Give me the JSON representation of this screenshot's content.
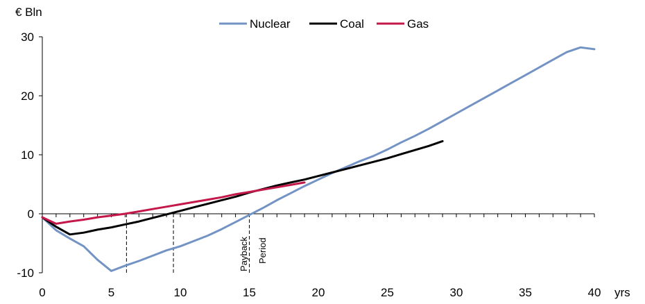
{
  "chart_data": {
    "type": "line",
    "title": "",
    "ylabel": "€ Bln",
    "xlabel": "yrs",
    "xlim": [
      0,
      40
    ],
    "ylim": [
      -10,
      30
    ],
    "x_ticks": [
      0,
      5,
      10,
      15,
      20,
      25,
      30,
      35,
      40
    ],
    "y_ticks": [
      -10,
      0,
      10,
      20,
      30
    ],
    "grid": false,
    "legend": "top-center",
    "series": [
      {
        "name": "Nuclear",
        "color": "#7393c4",
        "points": [
          [
            0,
            -0.6
          ],
          [
            1,
            -2.8
          ],
          [
            2,
            -4.2
          ],
          [
            3,
            -5.5
          ],
          [
            4,
            -7.8
          ],
          [
            5,
            -9.7
          ],
          [
            6,
            -8.8
          ],
          [
            7,
            -8.0
          ],
          [
            8,
            -7.1
          ],
          [
            9,
            -6.2
          ],
          [
            10,
            -5.5
          ],
          [
            11,
            -4.6
          ],
          [
            12,
            -3.7
          ],
          [
            13,
            -2.6
          ],
          [
            14,
            -1.4
          ],
          [
            15,
            -0.2
          ],
          [
            16,
            1.0
          ],
          [
            17,
            2.3
          ],
          [
            18,
            3.5
          ],
          [
            19,
            4.7
          ],
          [
            20,
            5.8
          ],
          [
            21,
            6.9
          ],
          [
            22,
            7.9
          ],
          [
            23,
            8.9
          ],
          [
            24,
            9.8
          ],
          [
            25,
            10.9
          ],
          [
            26,
            12.1
          ],
          [
            27,
            13.2
          ],
          [
            28,
            14.4
          ],
          [
            29,
            15.7
          ],
          [
            30,
            17.0
          ],
          [
            31,
            18.3
          ],
          [
            32,
            19.6
          ],
          [
            33,
            20.9
          ],
          [
            34,
            22.2
          ],
          [
            35,
            23.5
          ],
          [
            36,
            24.8
          ],
          [
            37,
            26.1
          ],
          [
            38,
            27.4
          ],
          [
            39,
            28.2
          ],
          [
            40,
            27.9
          ]
        ]
      },
      {
        "name": "Coal",
        "color": "#000000",
        "points": [
          [
            0,
            -0.6
          ],
          [
            1,
            -2.2
          ],
          [
            2,
            -3.5
          ],
          [
            3,
            -3.2
          ],
          [
            4,
            -2.7
          ],
          [
            5,
            -2.3
          ],
          [
            6,
            -1.8
          ],
          [
            7,
            -1.3
          ],
          [
            8,
            -0.7
          ],
          [
            9,
            -0.1
          ],
          [
            10,
            0.5
          ],
          [
            11,
            1.1
          ],
          [
            12,
            1.7
          ],
          [
            13,
            2.3
          ],
          [
            14,
            2.9
          ],
          [
            15,
            3.6
          ],
          [
            16,
            4.2
          ],
          [
            17,
            4.8
          ],
          [
            18,
            5.3
          ],
          [
            19,
            5.8
          ],
          [
            20,
            6.4
          ],
          [
            21,
            7.0
          ],
          [
            22,
            7.6
          ],
          [
            23,
            8.2
          ],
          [
            24,
            8.8
          ],
          [
            25,
            9.4
          ],
          [
            26,
            10.1
          ],
          [
            27,
            10.8
          ],
          [
            28,
            11.5
          ],
          [
            29,
            12.3
          ]
        ]
      },
      {
        "name": "Gas",
        "color": "#c4184a",
        "points": [
          [
            0,
            -0.6
          ],
          [
            1,
            -1.7
          ],
          [
            2,
            -1.3
          ],
          [
            3,
            -1.0
          ],
          [
            4,
            -0.6
          ],
          [
            5,
            -0.3
          ],
          [
            6,
            0.0
          ],
          [
            7,
            0.4
          ],
          [
            8,
            0.8
          ],
          [
            9,
            1.2
          ],
          [
            10,
            1.6
          ],
          [
            11,
            2.0
          ],
          [
            12,
            2.4
          ],
          [
            13,
            2.8
          ],
          [
            14,
            3.3
          ],
          [
            15,
            3.7
          ],
          [
            16,
            4.1
          ],
          [
            17,
            4.5
          ],
          [
            18,
            4.9
          ],
          [
            19,
            5.3
          ]
        ]
      }
    ],
    "reference_lines": [
      {
        "x": 6.1,
        "label": ""
      },
      {
        "x": 9.5,
        "label": ""
      },
      {
        "x": 15.0,
        "label": "Payback Period"
      }
    ],
    "annotations": {
      "payback_line1": "Payback",
      "payback_line2": "Period"
    }
  }
}
